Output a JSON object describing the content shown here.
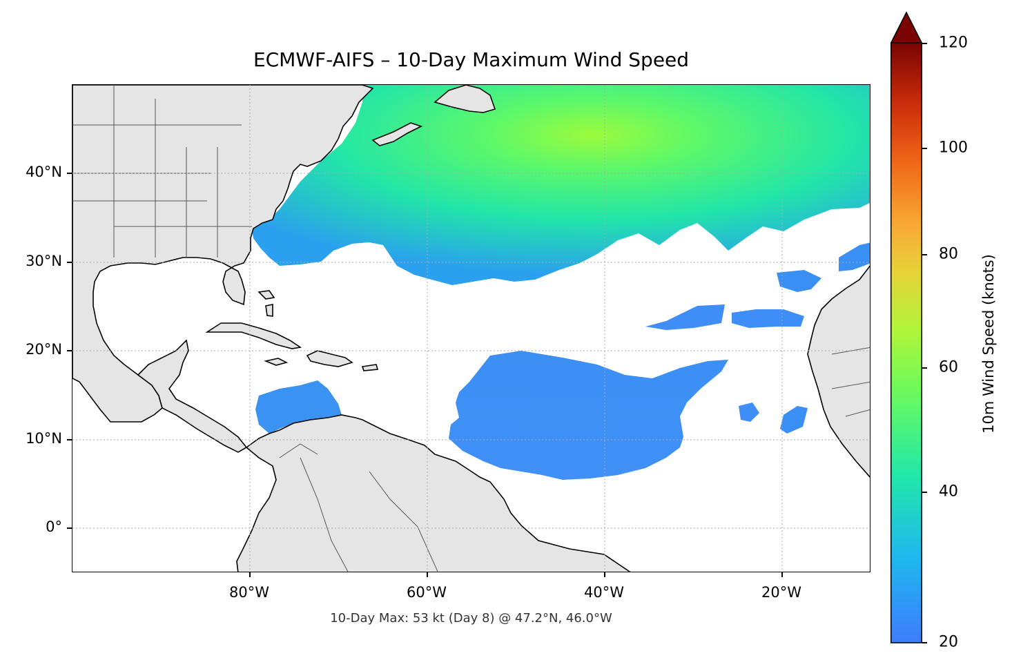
{
  "title": "ECMWF-AIFS – 10-Day Maximum Wind Speed",
  "footnote": "10-Day Max: 53 kt (Day 8) @ 47.2°N, 46.0°W",
  "map": {
    "region": "North Atlantic and Caribbean",
    "lon_range": [
      -100,
      -10
    ],
    "lat_range": [
      -5,
      50
    ],
    "land_color": "#e5e5e5",
    "ocean_color": "#ffffff",
    "gridlines": "dotted",
    "lat_ticks": [
      "40°N",
      "30°N",
      "20°N",
      "10°N",
      "0°"
    ],
    "lon_ticks": [
      "80°W",
      "60°W",
      "40°W",
      "20°W"
    ]
  },
  "colorbar": {
    "label": "10m Wind Speed (knots)",
    "min": 20,
    "max": 120,
    "extend": "max",
    "ticks": [
      "20",
      "40",
      "60",
      "80",
      "100",
      "120"
    ],
    "colors": [
      "#3e8cff",
      "#1fc5e6",
      "#27ef9f",
      "#a6ff3a",
      "#f7c63b",
      "#f57a20",
      "#cc2a0a",
      "#7a0403"
    ]
  }
}
